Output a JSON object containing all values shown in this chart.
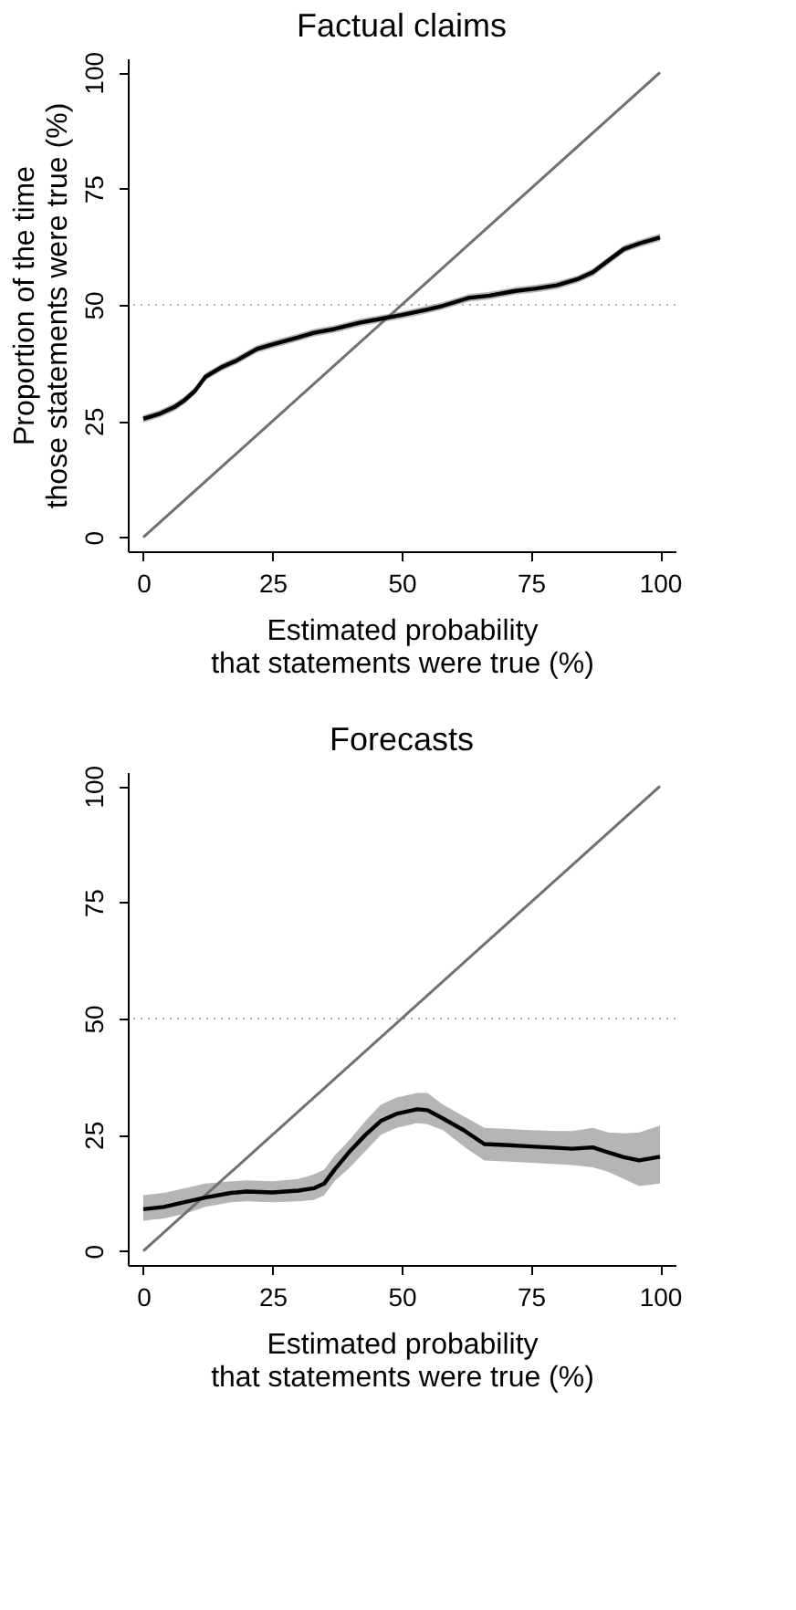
{
  "chart_data": [
    {
      "type": "line",
      "title": "Factual claims",
      "xlabel": "Estimated probability\nthat statements were true (%)",
      "ylabel": "Proportion of the time\nthose statements were true (%)",
      "xlim": [
        -3,
        103
      ],
      "ylim": [
        -3,
        103
      ],
      "xticks": [
        0,
        25,
        50,
        75,
        100
      ],
      "yticks": [
        0,
        25,
        50,
        75,
        100
      ],
      "grid": false,
      "marker": "none",
      "ref_lines": [
        {
          "axis": "y",
          "value": 50,
          "color": "#b0b0b0",
          "line_style": "dotted"
        }
      ],
      "series": [
        {
          "color": "#707070",
          "x": [
            0,
            100
          ],
          "values": [
            0,
            100
          ]
        },
        {
          "color": "#000000",
          "x": [
            0,
            3,
            6,
            8,
            10,
            12,
            15,
            18,
            22,
            25,
            30,
            33,
            37,
            42,
            46,
            50,
            55,
            58,
            63,
            67,
            72,
            76,
            80,
            84,
            87,
            90,
            93,
            96,
            100
          ],
          "values": [
            25.5,
            26.5,
            28,
            29.5,
            31.5,
            34.5,
            36.5,
            38,
            40.5,
            41.5,
            43,
            44,
            44.8,
            46.2,
            47,
            47.8,
            49,
            49.8,
            51.5,
            52,
            53,
            53.5,
            54.2,
            55.5,
            57,
            59.5,
            62,
            63.2,
            64.5
          ],
          "lower": [
            24.7,
            25.7,
            27.2,
            28.7,
            30.7,
            33.7,
            35.7,
            37.2,
            39.7,
            40.7,
            42.2,
            43.2,
            44,
            45.4,
            46.2,
            47,
            48.2,
            49,
            50.7,
            51.2,
            52.2,
            52.7,
            53.4,
            54.7,
            56.2,
            58.7,
            61.2,
            62.4,
            63.7
          ],
          "upper": [
            26.3,
            27.3,
            28.8,
            30.3,
            32.3,
            35.3,
            37.3,
            38.8,
            41.3,
            42.3,
            43.8,
            44.8,
            45.6,
            47,
            47.8,
            48.6,
            49.8,
            50.6,
            52.3,
            52.8,
            53.8,
            54.3,
            55,
            56.3,
            57.8,
            60.3,
            62.8,
            64,
            65.3
          ]
        }
      ]
    },
    {
      "type": "line",
      "title": "Forecasts",
      "xlabel": "Estimated probability\nthat statements were true (%)",
      "xlim": [
        -3,
        103
      ],
      "ylim": [
        -3,
        103
      ],
      "xticks": [
        0,
        25,
        50,
        75,
        100
      ],
      "yticks": [
        0,
        25,
        50,
        75,
        100
      ],
      "grid": false,
      "marker": "none",
      "ref_lines": [
        {
          "axis": "y",
          "value": 50,
          "color": "#b0b0b0",
          "line_style": "dotted"
        }
      ],
      "series": [
        {
          "color": "#707070",
          "x": [
            0,
            100
          ],
          "values": [
            0,
            100
          ]
        },
        {
          "color": "#000000",
          "x": [
            0,
            4,
            8,
            12,
            17,
            20,
            25,
            30,
            33,
            35,
            37,
            40,
            43,
            46,
            49,
            53,
            55,
            58,
            62,
            66,
            70,
            75,
            80,
            83,
            87,
            90,
            93,
            96,
            100
          ],
          "values": [
            9,
            9.5,
            10.5,
            11.5,
            12.5,
            12.8,
            12.6,
            13,
            13.5,
            14.5,
            17.5,
            21.5,
            25,
            28,
            29.5,
            30.5,
            30.3,
            28.5,
            26,
            23,
            22.8,
            22.5,
            22.2,
            22,
            22.3,
            21.2,
            20.2,
            19.5,
            20.3
          ],
          "lower": [
            6.5,
            7,
            8,
            9.5,
            10.5,
            10.7,
            10.5,
            10.7,
            11,
            12,
            15,
            18,
            21.5,
            25,
            26.5,
            27.5,
            27.3,
            26,
            22.5,
            19.5,
            19.3,
            19,
            18.7,
            18.5,
            18,
            17,
            15.5,
            14,
            14.5
          ],
          "upper": [
            12,
            12.5,
            13.5,
            14.5,
            15,
            15.2,
            15,
            15.5,
            16.5,
            17.5,
            20.5,
            24,
            28,
            31.5,
            33,
            34,
            34,
            31.5,
            29,
            26.5,
            26.3,
            26,
            25.8,
            25.8,
            26.5,
            25.5,
            25.3,
            25.5,
            27
          ]
        }
      ]
    }
  ]
}
